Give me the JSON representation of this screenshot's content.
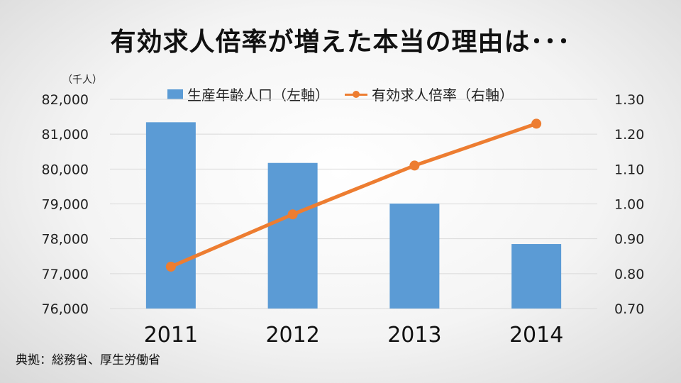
{
  "title": "有効求人倍率が増えた本当の理由は･･･",
  "source": "典拠：総務省、厚生労働省",
  "colors": {
    "bar": "#5b9bd5",
    "line": "#ed7d31",
    "grid": "#d9d9d9"
  },
  "chart_data": {
    "type": "bar",
    "categories": [
      "2011",
      "2012",
      "2013",
      "2014"
    ],
    "y_unit_label": "（千人）",
    "series": [
      {
        "name": "生産年齢人口（左軸）",
        "type": "bar",
        "axis": "left",
        "values": [
          81342,
          80175,
          79010,
          77850
        ]
      },
      {
        "name": "有効求人倍率（右軸）",
        "type": "line",
        "axis": "right",
        "values": [
          0.82,
          0.97,
          1.11,
          1.23
        ]
      }
    ],
    "y_left": {
      "min": 76000,
      "max": 82000,
      "ticks": [
        "76,000",
        "77,000",
        "78,000",
        "79,000",
        "80,000",
        "81,000",
        "82,000"
      ]
    },
    "y_right": {
      "min": 0.7,
      "max": 1.3,
      "ticks": [
        "0.70",
        "0.80",
        "0.90",
        "1.00",
        "1.10",
        "1.20",
        "1.30"
      ]
    },
    "grid": true,
    "legend_position": "top"
  }
}
